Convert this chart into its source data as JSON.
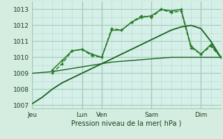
{
  "background_color": "#d4ede0",
  "plot_bg_color": "#d4f0e8",
  "grid_color_major": "#a8c8b8",
  "grid_color_minor": "#c0dcd0",
  "line_color_dark": "#1a6020",
  "line_color_mid": "#2a7a28",
  "ylim": [
    1006.8,
    1013.5
  ],
  "ylabel_ticks": [
    1007,
    1008,
    1009,
    1010,
    1011,
    1012,
    1013
  ],
  "xlabel": "Pression niveau de la mer( hPa )",
  "day_labels": [
    "Jeu",
    "Lun",
    "Ven",
    "Sam",
    "Dim"
  ],
  "day_positions": [
    0,
    60,
    84,
    144,
    204
  ],
  "total_hours": 228,
  "line1_smooth": {
    "x": [
      0,
      12,
      24,
      36,
      48,
      60,
      72,
      84,
      96,
      108,
      120,
      132,
      144,
      156,
      168,
      180,
      192,
      204,
      216,
      228
    ],
    "y": [
      1007.1,
      1007.5,
      1008.0,
      1008.4,
      1008.7,
      1009.0,
      1009.3,
      1009.6,
      1009.9,
      1010.2,
      1010.5,
      1010.8,
      1011.1,
      1011.4,
      1011.7,
      1011.9,
      1012.0,
      1011.8,
      1011.0,
      1010.0
    ],
    "lw": 1.3
  },
  "line2_flat": {
    "x": [
      0,
      12,
      24,
      36,
      48,
      60,
      72,
      84,
      96,
      108,
      120,
      132,
      144,
      156,
      168,
      180,
      192,
      204,
      216,
      228
    ],
    "y": [
      1009.0,
      1009.05,
      1009.1,
      1009.2,
      1009.3,
      1009.4,
      1009.5,
      1009.6,
      1009.7,
      1009.75,
      1009.8,
      1009.85,
      1009.9,
      1009.95,
      1010.0,
      1010.0,
      1010.0,
      1010.0,
      1010.0,
      1010.0
    ],
    "lw": 1.0
  },
  "line3_marker": {
    "x": [
      24,
      36,
      48,
      60,
      72,
      84,
      96,
      108,
      120,
      132,
      144,
      156,
      168,
      180,
      192,
      204,
      216,
      228
    ],
    "y": [
      1009.0,
      1009.6,
      1010.4,
      1010.5,
      1010.1,
      1010.0,
      1011.8,
      1011.7,
      1012.2,
      1012.6,
      1012.5,
      1013.0,
      1012.8,
      1012.9,
      1010.6,
      1010.2,
      1010.7,
      1010.0
    ],
    "lw": 1.1,
    "linestyle": "--"
  },
  "line4_marker": {
    "x": [
      24,
      36,
      48,
      60,
      72,
      84,
      96,
      108,
      120,
      132,
      144,
      156,
      168,
      180,
      192,
      204,
      216,
      228
    ],
    "y": [
      1009.2,
      1009.8,
      1010.4,
      1010.5,
      1010.2,
      1010.0,
      1011.7,
      1011.7,
      1012.2,
      1012.5,
      1012.6,
      1013.0,
      1012.9,
      1013.0,
      1010.7,
      1010.2,
      1010.8,
      1010.0
    ],
    "lw": 1.1,
    "linestyle": "-"
  }
}
